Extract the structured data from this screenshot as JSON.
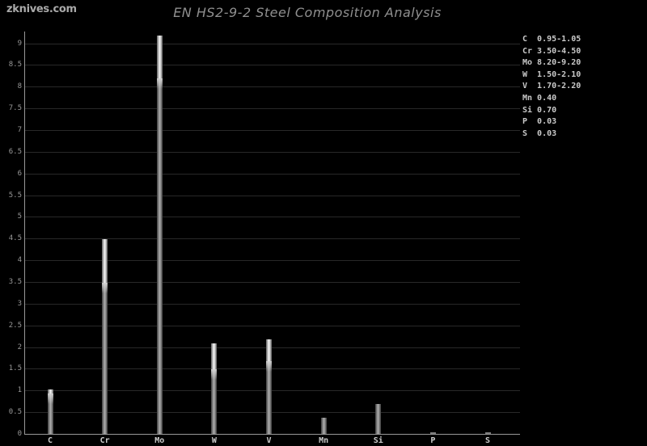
{
  "watermark": "zknives.com",
  "title": "EN HS2-9-2 Steel Composition Analysis",
  "colors": {
    "background": "#000000",
    "title_text": "#8f8f8f",
    "watermark_text": "#a9a9a9",
    "axis": "#989898",
    "gridline": "#282828",
    "y_tick_label": "#999999",
    "x_tick_label": "#cccccc",
    "legend_text": "#c9c9c9",
    "bar_range_highlight": "#f5f5f5",
    "bar_body": "#9c9c9c"
  },
  "chart_data": {
    "type": "bar",
    "title": "EN HS2-9-2 Steel Composition Analysis",
    "xlabel": "",
    "ylabel": "",
    "ylim": [
      0,
      9
    ],
    "ytick_step": 0.5,
    "grid": true,
    "legend_position": "right",
    "categories": [
      "C",
      "Cr",
      "Mo",
      "W",
      "V",
      "Mn",
      "Si",
      "P",
      "S"
    ],
    "elements": [
      {
        "symbol": "C",
        "low": 0.95,
        "high": 1.05,
        "range_label": "0.95-1.05"
      },
      {
        "symbol": "Cr",
        "low": 3.5,
        "high": 4.5,
        "range_label": "3.50-4.50"
      },
      {
        "symbol": "Mo",
        "low": 8.2,
        "high": 9.2,
        "range_label": "8.20-9.20"
      },
      {
        "symbol": "W",
        "low": 1.5,
        "high": 2.1,
        "range_label": "1.50-2.10"
      },
      {
        "symbol": "V",
        "low": 1.7,
        "high": 2.2,
        "range_label": "1.70-2.20"
      },
      {
        "symbol": "Mn",
        "low": null,
        "high": 0.4,
        "range_label": "0.40"
      },
      {
        "symbol": "Si",
        "low": null,
        "high": 0.7,
        "range_label": "0.70"
      },
      {
        "symbol": "P",
        "low": null,
        "high": 0.03,
        "range_label": "0.03"
      },
      {
        "symbol": "S",
        "low": null,
        "high": 0.03,
        "range_label": "0.03"
      }
    ]
  }
}
